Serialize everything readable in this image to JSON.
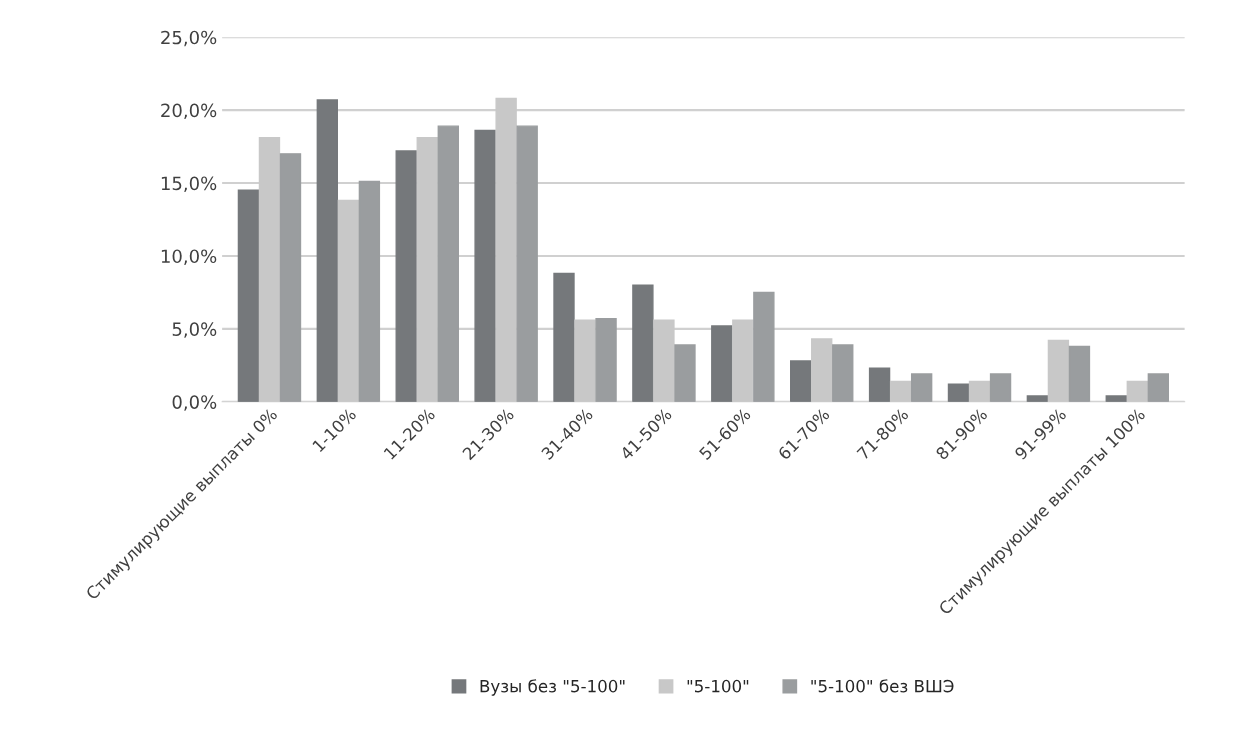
{
  "chart_data": {
    "type": "bar",
    "categories": [
      "Стимулирующие выплаты 0%",
      "1-10%",
      "11-20%",
      "21-30%",
      "31-40%",
      "41-50%",
      "51-60%",
      "61-70%",
      "71-80%",
      "81-90%",
      "91-99%",
      "Стимулирующие выплаты 100%"
    ],
    "series": [
      {
        "name": "Вузы без \"5-100\"",
        "color": "#75787b",
        "values": [
          14.5,
          20.7,
          17.2,
          18.6,
          8.8,
          8.0,
          5.2,
          2.8,
          2.3,
          1.2,
          0.4,
          0.4
        ]
      },
      {
        "name": "\"5-100\"",
        "color": "#c8c8c8",
        "values": [
          18.1,
          13.8,
          18.1,
          20.8,
          5.6,
          5.6,
          5.6,
          4.3,
          1.4,
          1.4,
          4.2,
          1.4
        ]
      },
      {
        "name": "\"5-100\" без ВШЭ",
        "color": "#9a9d9f",
        "values": [
          17.0,
          15.1,
          18.9,
          18.9,
          5.7,
          3.9,
          7.5,
          3.9,
          1.9,
          1.9,
          3.8,
          1.9
        ]
      }
    ],
    "ylim": [
      0,
      25
    ],
    "yticks": [
      {
        "value": 0,
        "label": "0,0%"
      },
      {
        "value": 5,
        "label": "5,0%"
      },
      {
        "value": 10,
        "label": "10,0%"
      },
      {
        "value": 15,
        "label": "15,0%"
      },
      {
        "value": 20,
        "label": "20,0%"
      },
      {
        "value": 25,
        "label": "25,0%"
      }
    ],
    "grid": "y",
    "legend": "bottom"
  }
}
